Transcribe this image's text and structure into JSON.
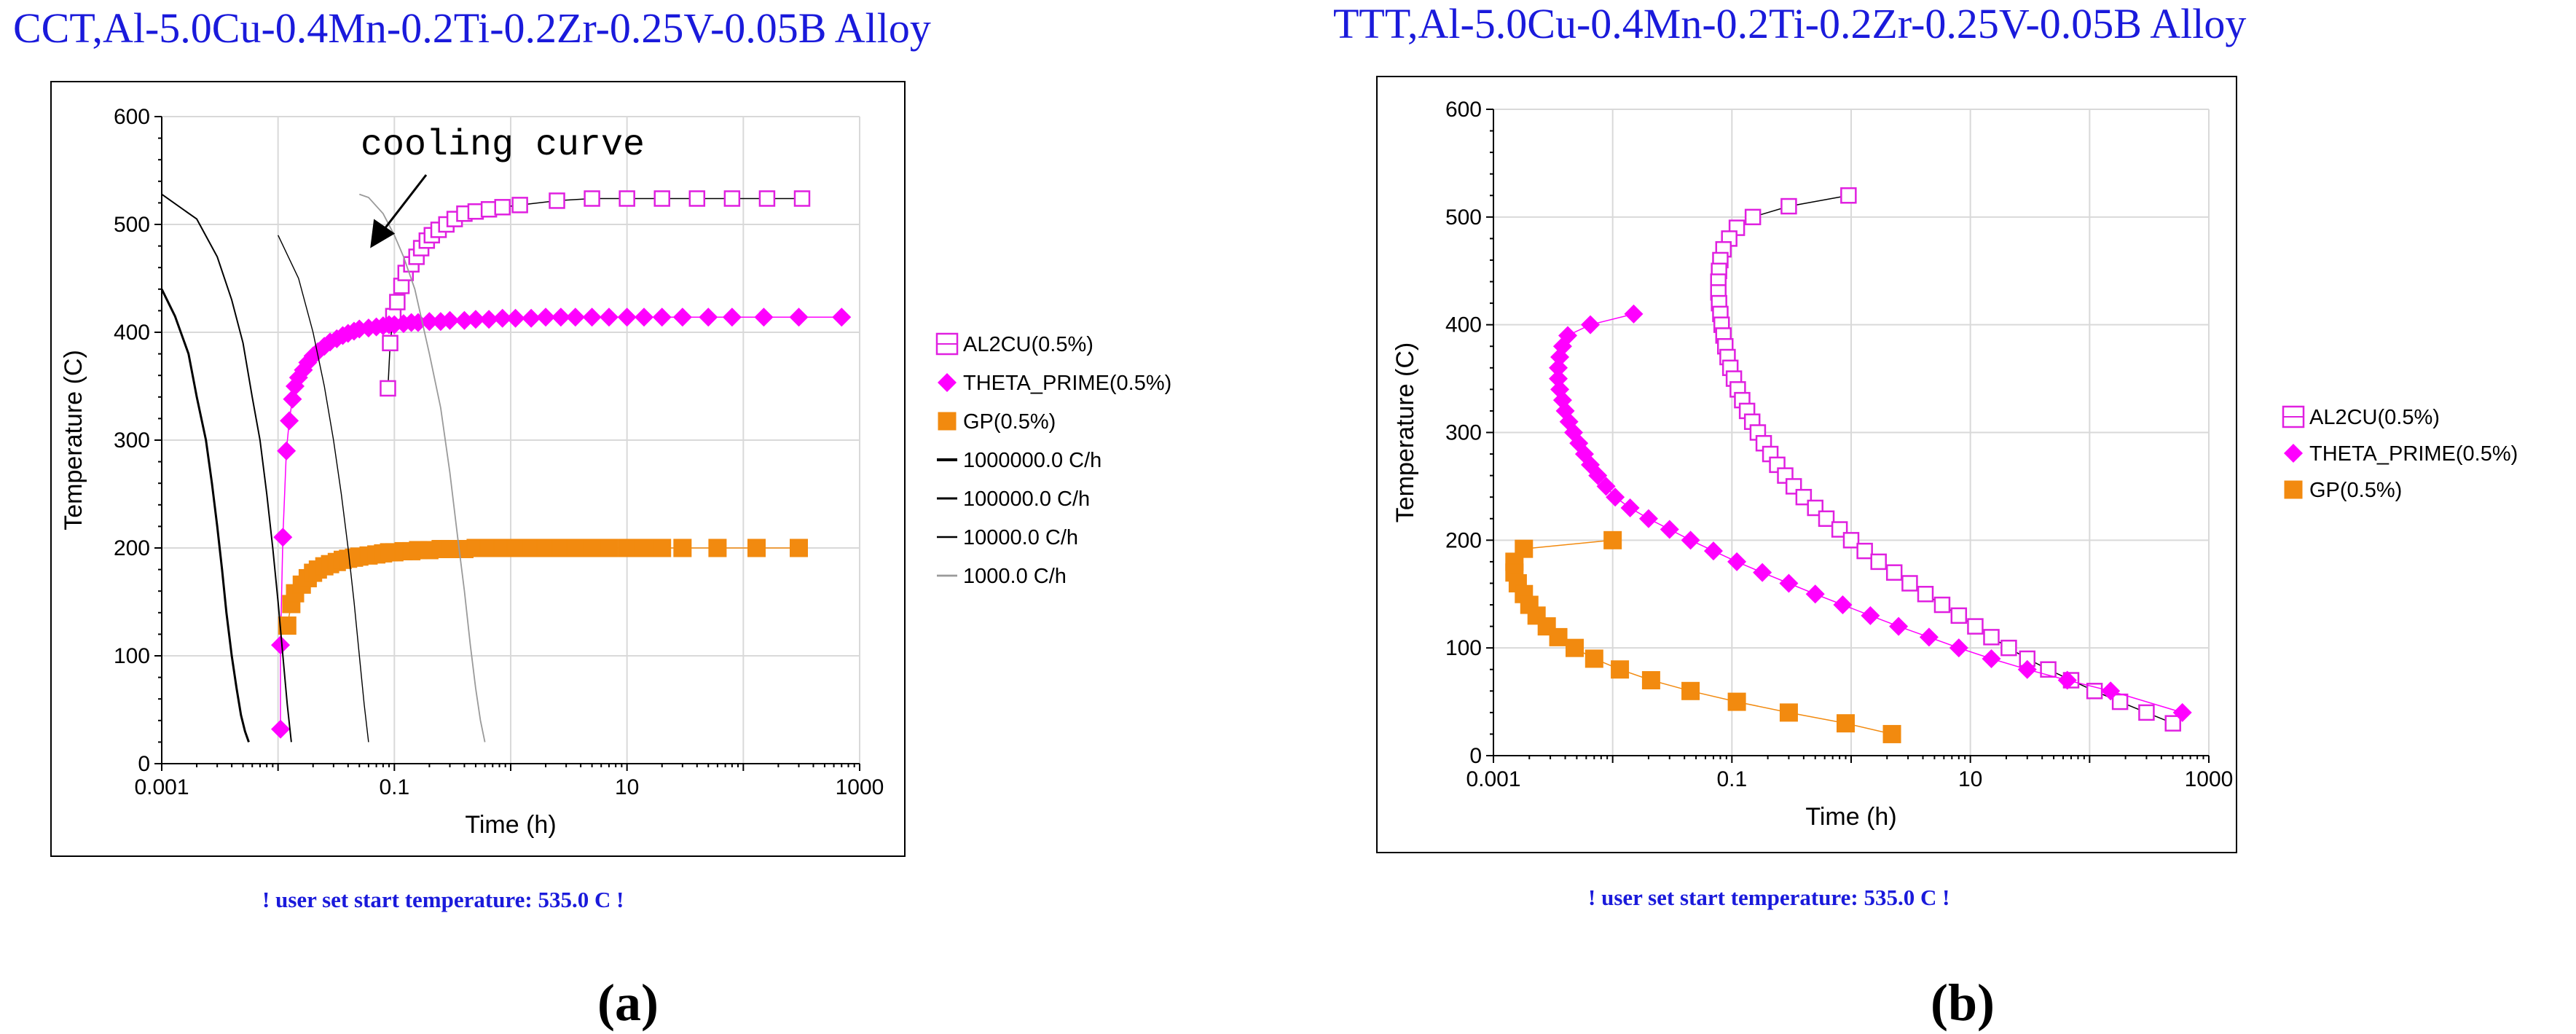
{
  "chart_data": [
    {
      "id": "cct",
      "type": "line",
      "panel_label": "a",
      "title": "CCT,Al-5.0Cu-0.4Mn-0.2Ti-0.2Zr-0.25V-0.05B Alloy",
      "xlabel": "Time (h)",
      "ylabel": "Temperature (C)",
      "xscale": "log",
      "xlim": [
        0.001,
        1000
      ],
      "ylim": [
        0,
        600
      ],
      "xticks": [
        "0.001",
        "0.1",
        "10",
        "1000"
      ],
      "yticks": [
        "0",
        "100",
        "200",
        "300",
        "400",
        "500",
        "600"
      ],
      "grid": true,
      "note": "! user set start temperature: 535.0 C !",
      "annotation": "cooling curve",
      "series": [
        {
          "name": "AL2CU(0.5%)",
          "marker": "open-square",
          "color": "#e020e0",
          "x": [
            0.088,
            0.092,
            0.098,
            0.106,
            0.115,
            0.125,
            0.14,
            0.155,
            0.17,
            0.19,
            0.21,
            0.24,
            0.28,
            0.33,
            0.4,
            0.5,
            0.65,
            0.85,
            1.2,
            2.5,
            5,
            10,
            20,
            40,
            80,
            160,
            320
          ],
          "y": [
            348,
            390,
            415,
            428,
            443,
            455,
            463,
            470,
            478,
            485,
            490,
            495,
            500,
            505,
            510,
            512,
            514,
            516,
            518,
            522,
            524,
            524,
            524,
            524,
            524,
            524,
            524
          ]
        },
        {
          "name": "THETA_PRIME(0.5%)",
          "marker": "diamond",
          "color": "#ff00ff",
          "x": [
            0.0105,
            0.0105,
            0.011,
            0.0118,
            0.0125,
            0.0133,
            0.014,
            0.015,
            0.0165,
            0.018,
            0.02,
            0.022,
            0.025,
            0.028,
            0.032,
            0.036,
            0.04,
            0.045,
            0.05,
            0.06,
            0.07,
            0.08,
            0.09,
            0.1,
            0.12,
            0.14,
            0.16,
            0.2,
            0.25,
            0.3,
            0.4,
            0.5,
            0.65,
            0.85,
            1.1,
            1.5,
            2,
            2.7,
            3.6,
            5,
            7,
            10,
            14,
            20,
            30,
            50,
            80,
            150,
            300,
            700
          ],
          "y": [
            32,
            110,
            210,
            290,
            318,
            338,
            350,
            358,
            365,
            372,
            378,
            382,
            387,
            391,
            394,
            397,
            399,
            401,
            403,
            404,
            405,
            406,
            407,
            407,
            408,
            409,
            409,
            410,
            410,
            411,
            411,
            412,
            412,
            413,
            413,
            413,
            414,
            414,
            414,
            414,
            414,
            414,
            414,
            414,
            414,
            414,
            414,
            414,
            414,
            414
          ]
        },
        {
          "name": "GP(0.5%)",
          "marker": "filled-square",
          "color": "#f28a0f",
          "x": [
            0.012,
            0.013,
            0.014,
            0.016,
            0.018,
            0.02,
            0.022,
            0.025,
            0.028,
            0.032,
            0.036,
            0.04,
            0.045,
            0.05,
            0.06,
            0.07,
            0.08,
            0.09,
            0.1,
            0.12,
            0.14,
            0.16,
            0.2,
            0.25,
            0.3,
            0.4,
            0.5,
            0.65,
            0.85,
            1.1,
            1.5,
            2,
            2.7,
            3.6,
            5,
            7,
            10,
            14,
            20,
            30,
            60,
            130,
            300
          ],
          "y": [
            128,
            148,
            158,
            166,
            172,
            177,
            180,
            183,
            185,
            187,
            189,
            190,
            191,
            192,
            193,
            194,
            195,
            196,
            196,
            197,
            197,
            198,
            198,
            199,
            199,
            199,
            200,
            200,
            200,
            200,
            200,
            200,
            200,
            200,
            200,
            200,
            200,
            200,
            200,
            200,
            200,
            200,
            200
          ]
        },
        {
          "name": "1000000.0 C/h",
          "marker": "line",
          "color": "#000000",
          "width": 3,
          "x": [
            0.001,
            0.0013,
            0.0017,
            0.002,
            0.0024,
            0.0027,
            0.003,
            0.0033,
            0.0036,
            0.004,
            0.0044,
            0.0048,
            0.0052,
            0.0056
          ],
          "y": [
            440,
            415,
            380,
            340,
            300,
            260,
            220,
            180,
            140,
            100,
            70,
            45,
            30,
            20
          ]
        },
        {
          "name": "100000.0 C/h",
          "marker": "line",
          "color": "#000000",
          "width": 2,
          "x": [
            0.001,
            0.002,
            0.003,
            0.004,
            0.005,
            0.006,
            0.007,
            0.008,
            0.009,
            0.01,
            0.011,
            0.012,
            0.013
          ],
          "y": [
            528,
            505,
            470,
            430,
            390,
            340,
            300,
            250,
            200,
            150,
            100,
            55,
            20
          ]
        },
        {
          "name": "10000.0 C/h",
          "marker": "line",
          "color": "#000000",
          "width": 1.4,
          "x": [
            0.01,
            0.015,
            0.02,
            0.025,
            0.03,
            0.035,
            0.04,
            0.045,
            0.05,
            0.055,
            0.06
          ],
          "y": [
            490,
            450,
            400,
            350,
            300,
            250,
            200,
            150,
            100,
            55,
            20
          ]
        },
        {
          "name": "1000.0 C/h",
          "marker": "line",
          "color": "#9a9a9a",
          "width": 1.8,
          "x": [
            0.05,
            0.06,
            0.08,
            0.1,
            0.12,
            0.15,
            0.2,
            0.25,
            0.3,
            0.35,
            0.4,
            0.45,
            0.5,
            0.55,
            0.6
          ],
          "y": [
            528,
            525,
            510,
            490,
            470,
            440,
            380,
            330,
            270,
            210,
            160,
            110,
            70,
            40,
            20
          ]
        }
      ]
    },
    {
      "id": "ttt",
      "type": "line",
      "panel_label": "b",
      "title": "TTT,Al-5.0Cu-0.4Mn-0.2Ti-0.2Zr-0.25V-0.05B Alloy",
      "xlabel": "Time (h)",
      "ylabel": "Temperature (C)",
      "xscale": "log",
      "xlim": [
        0.001,
        1000
      ],
      "ylim": [
        0,
        600
      ],
      "xticks": [
        "0.001",
        "0.1",
        "10",
        "1000"
      ],
      "yticks": [
        "0",
        "100",
        "200",
        "300",
        "400",
        "500",
        "600"
      ],
      "grid": true,
      "note": "! user set start temperature: 535.0 C !",
      "series": [
        {
          "name": "AL2CU(0.5%)",
          "marker": "open-square",
          "color": "#e020e0",
          "x": [
            0.95,
            0.3,
            0.15,
            0.11,
            0.095,
            0.085,
            0.08,
            0.078,
            0.077,
            0.077,
            0.078,
            0.08,
            0.082,
            0.085,
            0.088,
            0.092,
            0.097,
            0.104,
            0.112,
            0.122,
            0.134,
            0.148,
            0.165,
            0.185,
            0.21,
            0.24,
            0.28,
            0.33,
            0.4,
            0.5,
            0.62,
            0.8,
            1,
            1.3,
            1.7,
            2.3,
            3.1,
            4.2,
            5.8,
            8,
            11,
            15,
            21,
            30,
            45,
            70,
            110,
            180,
            300,
            500
          ],
          "y": [
            520,
            510,
            500,
            490,
            480,
            470,
            460,
            450,
            440,
            430,
            420,
            410,
            400,
            390,
            380,
            370,
            360,
            350,
            340,
            330,
            320,
            310,
            300,
            290,
            280,
            270,
            260,
            250,
            240,
            230,
            220,
            210,
            200,
            190,
            180,
            170,
            160,
            150,
            140,
            130,
            120,
            110,
            100,
            90,
            80,
            70,
            60,
            50,
            40,
            30
          ]
        },
        {
          "name": "THETA_PRIME(0.5%)",
          "marker": "diamond",
          "color": "#ff00ff",
          "x": [
            0.015,
            0.0065,
            0.0042,
            0.0038,
            0.0036,
            0.0035,
            0.0035,
            0.0036,
            0.0038,
            0.004,
            0.0043,
            0.0047,
            0.0052,
            0.0058,
            0.0065,
            0.0075,
            0.0088,
            0.0105,
            0.014,
            0.02,
            0.03,
            0.045,
            0.07,
            0.11,
            0.18,
            0.3,
            0.5,
            0.85,
            1.45,
            2.5,
            4.5,
            8,
            15,
            30,
            65,
            150,
            600
          ],
          "y": [
            410,
            400,
            390,
            380,
            370,
            360,
            350,
            340,
            330,
            320,
            310,
            300,
            290,
            280,
            270,
            260,
            250,
            240,
            230,
            220,
            210,
            200,
            190,
            180,
            170,
            160,
            150,
            140,
            130,
            120,
            110,
            100,
            90,
            80,
            70,
            60,
            40
          ]
        },
        {
          "name": "GP(0.5%)",
          "marker": "filled-square",
          "color": "#f28a0f",
          "x": [
            0.01,
            0.0018,
            0.0015,
            0.0015,
            0.0016,
            0.0018,
            0.002,
            0.0023,
            0.0028,
            0.0035,
            0.0048,
            0.007,
            0.0115,
            0.021,
            0.045,
            0.11,
            0.3,
            0.9,
            2.2
          ],
          "y": [
            200,
            192,
            180,
            170,
            160,
            150,
            140,
            130,
            120,
            110,
            100,
            90,
            80,
            70,
            60,
            50,
            40,
            30,
            20
          ]
        }
      ]
    }
  ]
}
